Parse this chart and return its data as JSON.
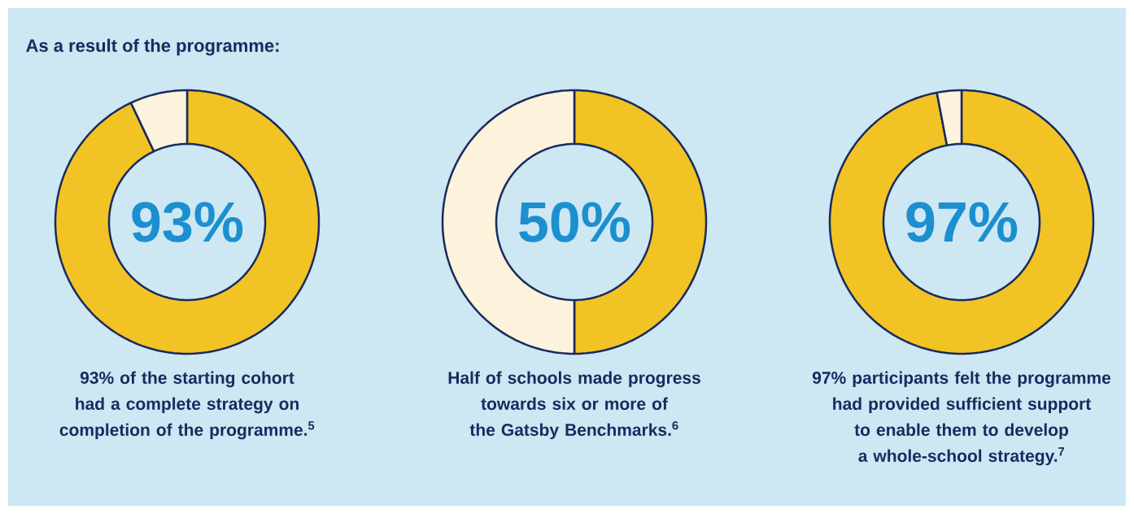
{
  "chart_data": [
    {
      "type": "donut",
      "title": "As a result of the programme:",
      "categories": [
        null,
        null
      ],
      "values": [
        93,
        7
      ],
      "colors": [
        "#f2c324",
        "#fdf2dc"
      ],
      "annotations": [
        "93%",
        "93% of the starting cohort had a complete strategy on completion of the programme.$^{5}$"
      ]
    },
    {
      "type": "donut",
      "categories": [
        null,
        null
      ],
      "values": [
        50,
        50
      ],
      "colors": [
        "#f2c324",
        "#fdf2dc"
      ],
      "annotations": [
        "50%",
        "Half of schools made progress towards six or more of the Gatsby Benchmarks.$^{6}$"
      ]
    },
    {
      "type": "donut",
      "categories": [
        null,
        null
      ],
      "values": [
        97,
        3
      ],
      "colors": [
        "#f2c324",
        "#fdf2dc"
      ],
      "annotations": [
        "97%",
        "97% participants felt the programme had provided sufficient support to enable them to develop a whole-school strategy.$^{7}$"
      ]
    }
  ]
}
